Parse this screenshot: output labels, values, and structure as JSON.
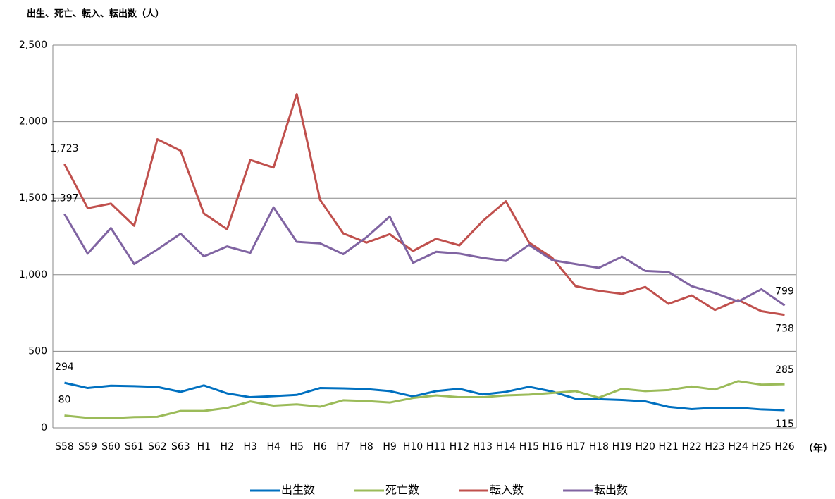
{
  "chart_data": {
    "type": "line",
    "title": "出生、死亡、転入、転出数（人）",
    "x_label": "（年）",
    "categories": [
      "S58",
      "S59",
      "S60",
      "S61",
      "S62",
      "S63",
      "H1",
      "H2",
      "H3",
      "H4",
      "H5",
      "H6",
      "H7",
      "H8",
      "H9",
      "H10",
      "H11",
      "H12",
      "H13",
      "H14",
      "H15",
      "H16",
      "H17",
      "H18",
      "H19",
      "H20",
      "H21",
      "H22",
      "H23",
      "H24",
      "H25",
      "H26"
    ],
    "series": [
      {
        "name": "出生数",
        "color": "#0070c0",
        "values": [
          294,
          260,
          275,
          272,
          267,
          235,
          277,
          225,
          200,
          207,
          215,
          260,
          258,
          253,
          240,
          205,
          240,
          255,
          218,
          235,
          268,
          237,
          190,
          187,
          182,
          173,
          137,
          122,
          131,
          131,
          120,
          115
        ],
        "value_labels": [
          "294",
          null,
          null,
          null,
          null,
          null,
          null,
          null,
          null,
          null,
          null,
          null,
          null,
          null,
          null,
          null,
          null,
          null,
          null,
          null,
          null,
          null,
          null,
          null,
          null,
          null,
          null,
          null,
          null,
          null,
          null,
          "115"
        ]
      },
      {
        "name": "死亡数",
        "color": "#9bbb59",
        "values": [
          80,
          65,
          63,
          70,
          72,
          110,
          110,
          130,
          172,
          145,
          153,
          138,
          180,
          175,
          165,
          195,
          212,
          200,
          200,
          212,
          217,
          228,
          240,
          197,
          255,
          240,
          247,
          270,
          250,
          305,
          282,
          285
        ],
        "value_labels": [
          "80",
          null,
          null,
          null,
          null,
          null,
          null,
          null,
          null,
          null,
          null,
          null,
          null,
          null,
          null,
          null,
          null,
          null,
          null,
          null,
          null,
          null,
          null,
          null,
          null,
          null,
          null,
          null,
          null,
          null,
          null,
          "285"
        ]
      },
      {
        "name": "転入数",
        "color": "#c0504d",
        "values": [
          1723,
          1435,
          1465,
          1320,
          1885,
          1810,
          1400,
          1297,
          1750,
          1700,
          2180,
          1490,
          1270,
          1210,
          1265,
          1155,
          1235,
          1192,
          1350,
          1480,
          1210,
          1110,
          925,
          895,
          875,
          920,
          810,
          865,
          770,
          835,
          762,
          738
        ],
        "value_labels": [
          "1,723",
          null,
          null,
          null,
          null,
          null,
          null,
          null,
          null,
          null,
          null,
          null,
          null,
          null,
          null,
          null,
          null,
          null,
          null,
          null,
          null,
          null,
          null,
          null,
          null,
          null,
          null,
          null,
          null,
          null,
          null,
          "738"
        ]
      },
      {
        "name": "転出数",
        "color": "#8064a2",
        "values": [
          1397,
          1138,
          1305,
          1070,
          1165,
          1268,
          1120,
          1185,
          1143,
          1440,
          1215,
          1205,
          1135,
          1245,
          1380,
          1078,
          1150,
          1138,
          1110,
          1090,
          1195,
          1095,
          1070,
          1045,
          1118,
          1025,
          1018,
          925,
          880,
          825,
          905,
          799
        ],
        "value_labels": [
          "1,397",
          null,
          null,
          null,
          null,
          null,
          null,
          null,
          null,
          null,
          null,
          null,
          null,
          null,
          null,
          null,
          null,
          null,
          null,
          null,
          null,
          null,
          null,
          null,
          null,
          null,
          null,
          null,
          null,
          null,
          null,
          "799"
        ]
      }
    ],
    "ylim": [
      0,
      2500
    ],
    "yticks": [
      0,
      500,
      {
        "value": 1000,
        "label": "1,000"
      },
      {
        "value": 1500,
        "label": "1,500"
      },
      {
        "value": 2000,
        "label": "2,000"
      },
      {
        "value": 2500,
        "label": "2,500"
      }
    ],
    "grid": true,
    "legend": "bottom"
  }
}
